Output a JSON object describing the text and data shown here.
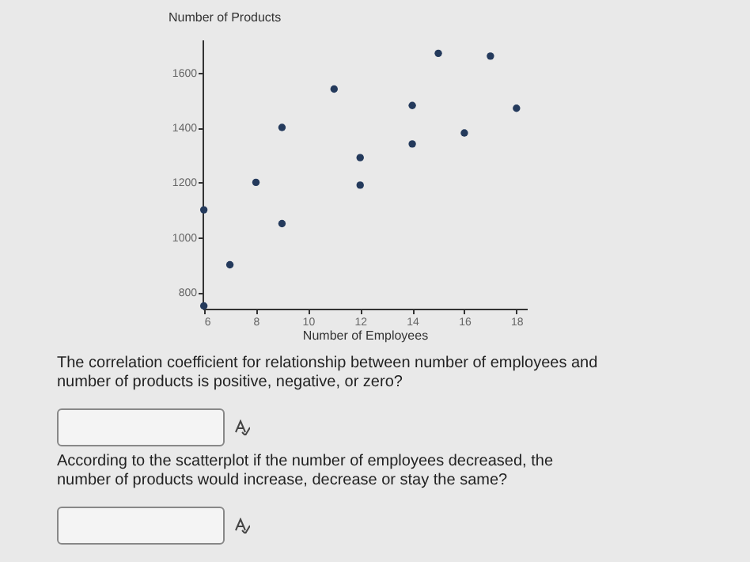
{
  "chart_data": {
    "type": "scatter",
    "xlabel": "Number of Employees",
    "ylabel": "Number of Products",
    "x": [
      6,
      6,
      7,
      8,
      9,
      9,
      11,
      12,
      12,
      14,
      14,
      15,
      16,
      17,
      18
    ],
    "series": [
      {
        "color": "#243a5c",
        "values": [
          750,
          1100,
          900,
          1200,
          1400,
          1050,
          1540,
          1290,
          1190,
          1480,
          1340,
          1670,
          1380,
          1660,
          1470
        ]
      }
    ],
    "xlim": [
      5.95,
      18.4
    ],
    "ylim": [
      740,
      1720
    ],
    "xticks": [
      6,
      8,
      10,
      12,
      14,
      16,
      18
    ],
    "yticks": [
      800,
      1000,
      1200,
      1400,
      1600
    ],
    "grid": false,
    "marker": "circle",
    "annotations": [
      "The correlation coefficient for relationship between number of employees and number of products is positive, negative, or zero?",
      "According to the scatterplot if the number of employees decreased, the number of products would increase, decrease or stay the same?"
    ]
  }
}
